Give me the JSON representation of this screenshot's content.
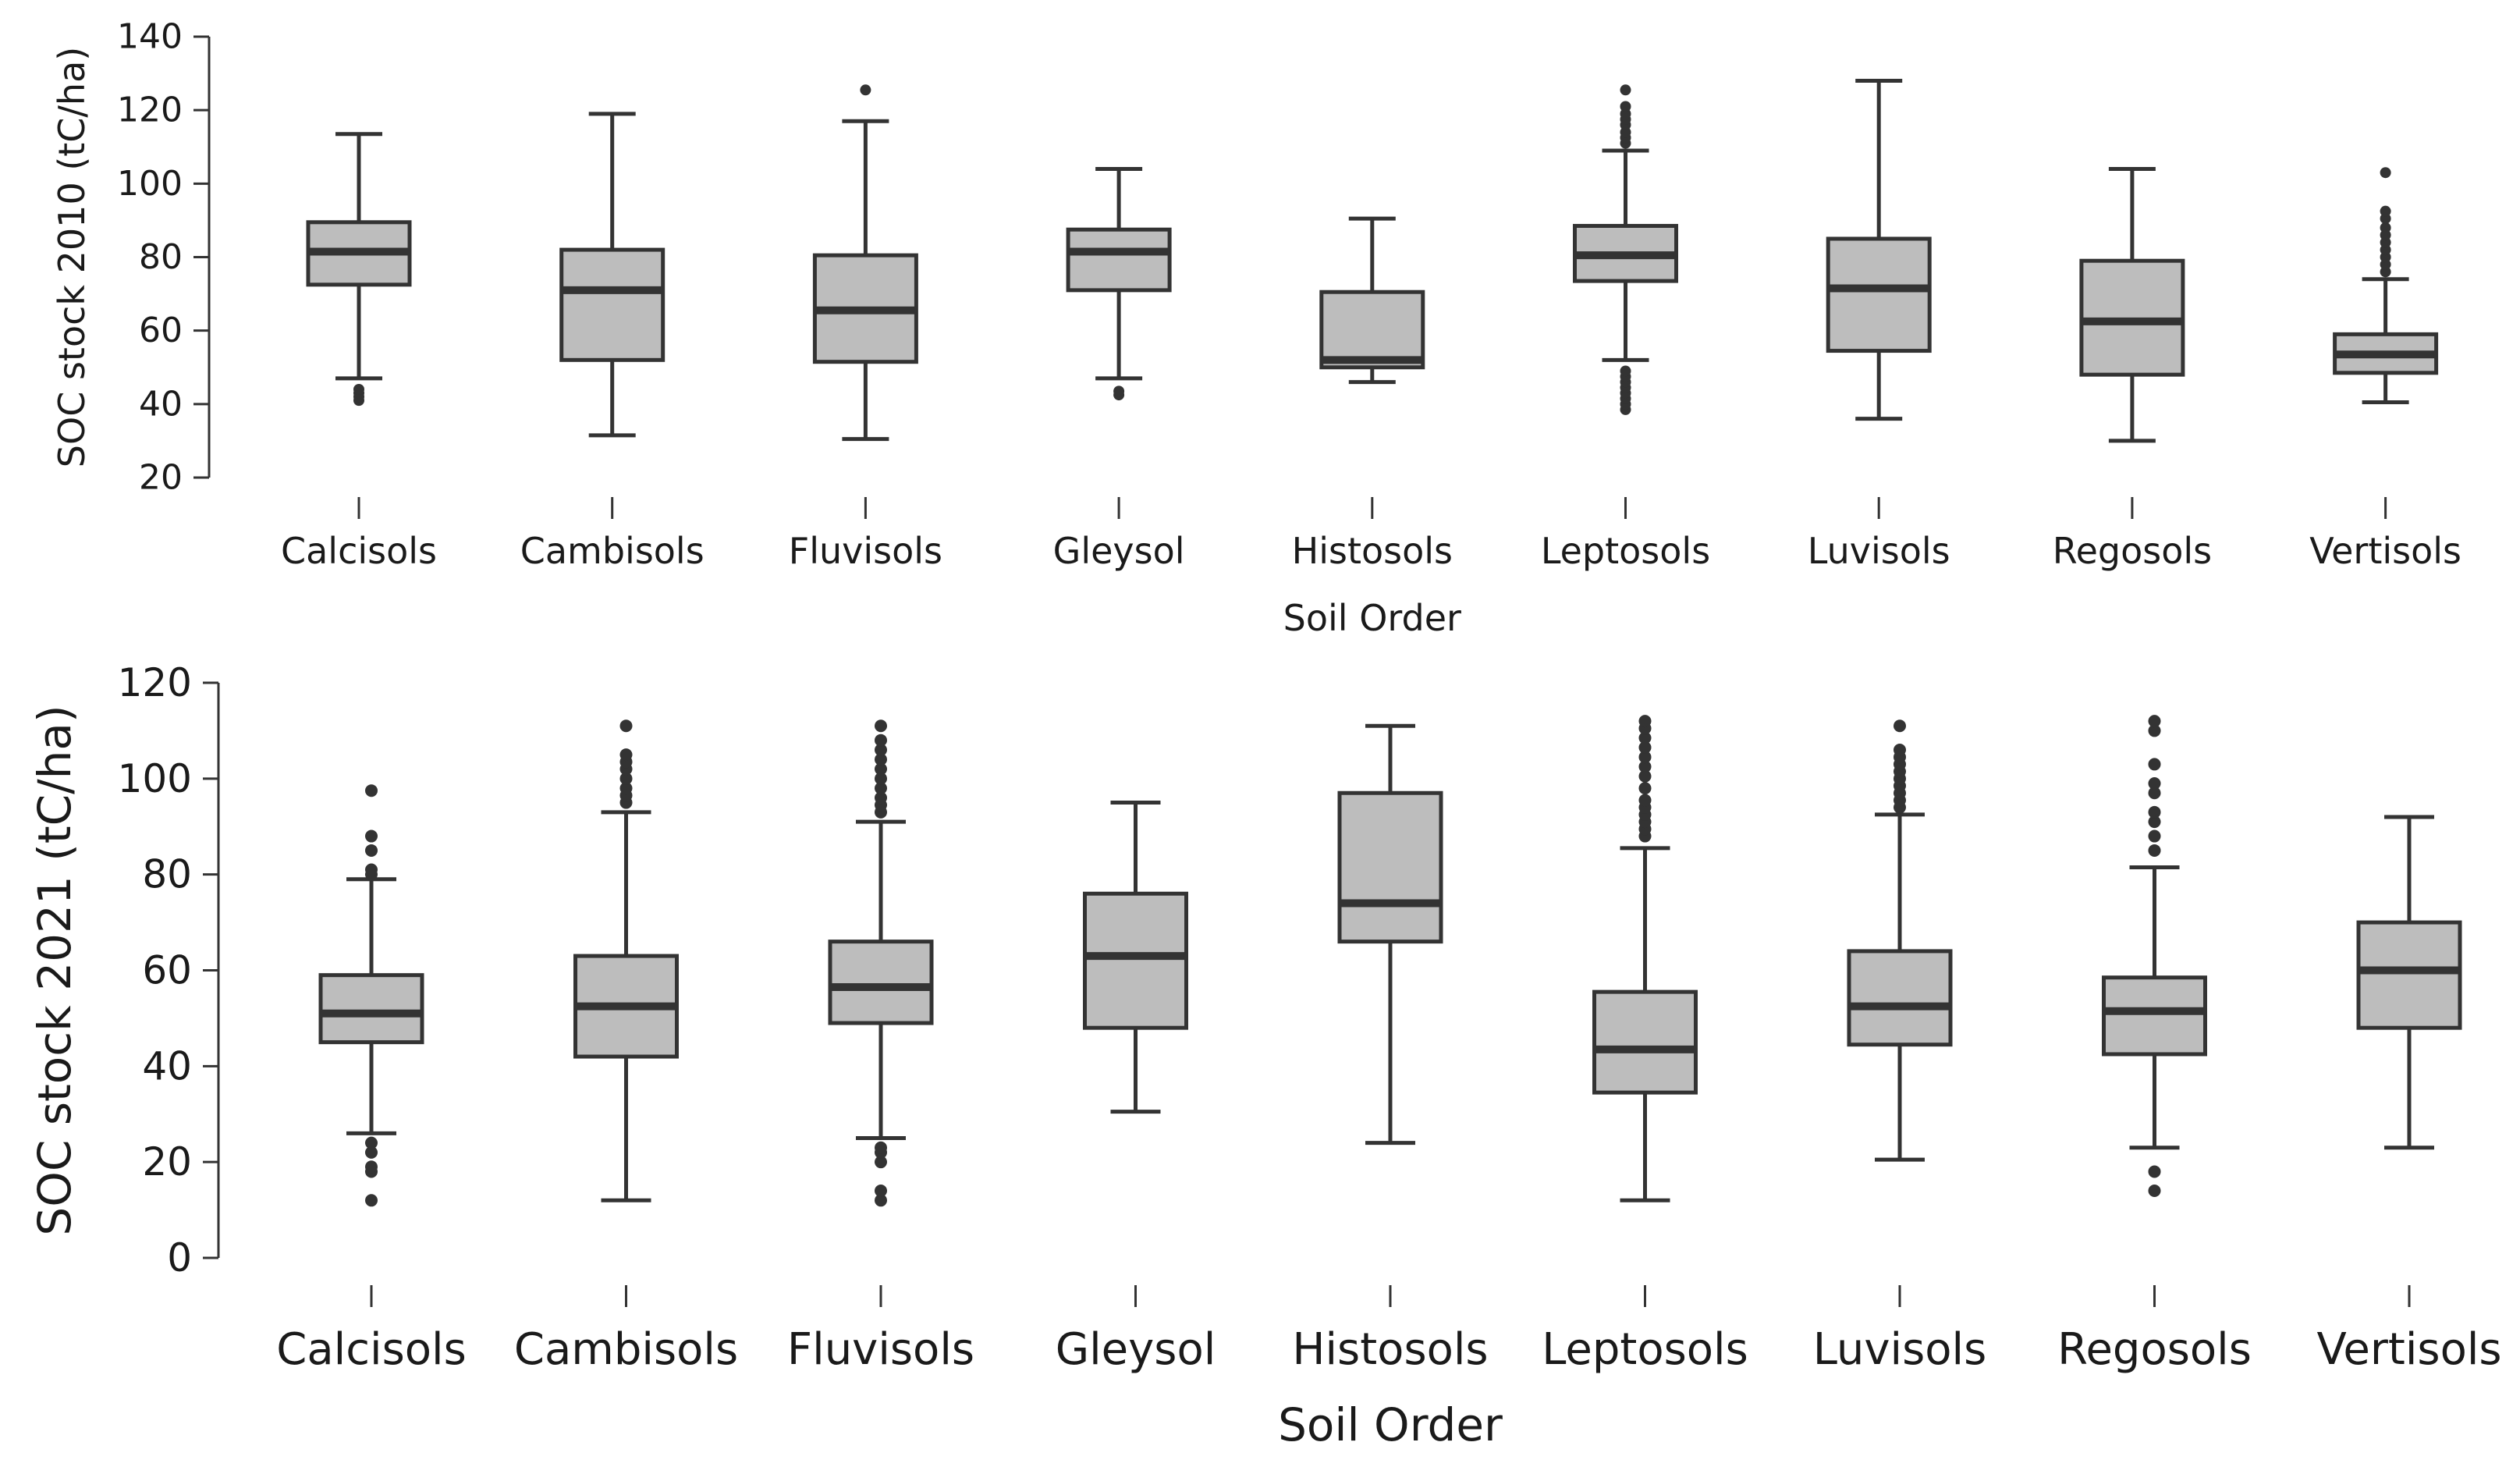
{
  "chart_data": [
    {
      "type": "box",
      "title": "",
      "xlabel": "Soil Order",
      "ylabel": "SOC stock 2010 (tC/ha)",
      "ylim": [
        20,
        140
      ],
      "yticks": [
        20,
        40,
        60,
        80,
        100,
        120,
        140
      ],
      "grid": false,
      "categories": [
        "Calcisols",
        "Cambisols",
        "Fluvisols",
        "Gleysol",
        "Histosols",
        "Leptosols",
        "Luvisols",
        "Regosols",
        "Vertisols"
      ],
      "boxes": [
        {
          "name": "Calcisols",
          "whisker_low": 47,
          "q1": 72.5,
          "median": 81.5,
          "q3": 89.5,
          "whisker_high": 113.5,
          "outliers": [
            41,
            42,
            43,
            44
          ]
        },
        {
          "name": "Cambisols",
          "whisker_low": 31.5,
          "q1": 52,
          "median": 71,
          "q3": 82,
          "whisker_high": 119,
          "outliers": []
        },
        {
          "name": "Fluvisols",
          "whisker_low": 30.5,
          "q1": 51.5,
          "median": 65.5,
          "q3": 80.5,
          "whisker_high": 117,
          "outliers": [
            125.5
          ]
        },
        {
          "name": "Gleysol",
          "whisker_low": 47,
          "q1": 71,
          "median": 81.5,
          "q3": 87.5,
          "whisker_high": 104,
          "outliers": [
            42.5,
            43.5
          ]
        },
        {
          "name": "Histosols",
          "whisker_low": 46,
          "q1": 50,
          "median": 52,
          "q3": 70.5,
          "whisker_high": 90.5,
          "outliers": []
        },
        {
          "name": "Leptosols",
          "whisker_low": 52,
          "q1": 73.5,
          "median": 80.5,
          "q3": 88.5,
          "whisker_high": 109,
          "outliers": [
            38.5,
            40,
            41.5,
            43,
            44.5,
            46,
            47.5,
            49,
            111,
            112.5,
            114,
            116,
            117.5,
            119,
            121,
            125.5
          ]
        },
        {
          "name": "Luvisols",
          "whisker_low": 36,
          "q1": 54.5,
          "median": 71.5,
          "q3": 85,
          "whisker_high": 128,
          "outliers": []
        },
        {
          "name": "Regosols",
          "whisker_low": 30,
          "q1": 48,
          "median": 62.5,
          "q3": 79,
          "whisker_high": 104,
          "outliers": []
        },
        {
          "name": "Vertisols",
          "whisker_low": 40.5,
          "q1": 48.5,
          "median": 53.5,
          "q3": 59,
          "whisker_high": 74,
          "outliers": [
            76,
            78,
            80,
            82,
            84,
            86,
            88,
            90.5,
            92.5,
            103
          ]
        }
      ]
    },
    {
      "type": "box",
      "title": "",
      "xlabel": "Soil Order",
      "ylabel": "SOC stock 2021 (tC/ha)",
      "ylim": [
        0,
        120
      ],
      "yticks": [
        0,
        20,
        40,
        60,
        80,
        100,
        120
      ],
      "grid": false,
      "categories": [
        "Calcisols",
        "Cambisols",
        "Fluvisols",
        "Gleysol",
        "Histosols",
        "Leptosols",
        "Luvisols",
        "Regosols",
        "Vertisols"
      ],
      "boxes": [
        {
          "name": "Calcisols",
          "whisker_low": 26,
          "q1": 45,
          "median": 51,
          "q3": 59,
          "whisker_high": 79,
          "outliers": [
            12,
            18,
            19,
            22,
            24,
            80,
            81,
            85,
            88,
            97.5
          ]
        },
        {
          "name": "Cambisols",
          "whisker_low": 12,
          "q1": 42,
          "median": 52.5,
          "q3": 63,
          "whisker_high": 93,
          "outliers": [
            95,
            96.5,
            98,
            100,
            102,
            103.5,
            105,
            111
          ]
        },
        {
          "name": "Fluvisols",
          "whisker_low": 25,
          "q1": 49,
          "median": 56.5,
          "q3": 66,
          "whisker_high": 91,
          "outliers": [
            12,
            14,
            20,
            22,
            23,
            93,
            94.5,
            96,
            98,
            100,
            102,
            104,
            106,
            108,
            111
          ]
        },
        {
          "name": "Gleysol",
          "whisker_low": 30.5,
          "q1": 48,
          "median": 63,
          "q3": 76,
          "whisker_high": 95,
          "outliers": []
        },
        {
          "name": "Histosols",
          "whisker_low": 24,
          "q1": 66,
          "median": 74,
          "q3": 97,
          "whisker_high": 111,
          "outliers": []
        },
        {
          "name": "Leptosols",
          "whisker_low": 12,
          "q1": 34.5,
          "median": 43.5,
          "q3": 55.5,
          "whisker_high": 85.5,
          "outliers": [
            88,
            89.5,
            91,
            92.5,
            94,
            95.5,
            98,
            100.5,
            102.5,
            104.5,
            106.5,
            108.5,
            110.5,
            112
          ]
        },
        {
          "name": "Luvisols",
          "whisker_low": 20.5,
          "q1": 44.5,
          "median": 52.5,
          "q3": 64,
          "whisker_high": 92.5,
          "outliers": [
            94,
            95.5,
            97,
            98.5,
            100,
            101.5,
            103,
            104.5,
            106,
            111
          ]
        },
        {
          "name": "Regosols",
          "whisker_low": 23,
          "q1": 42.5,
          "median": 51.5,
          "q3": 58.5,
          "whisker_high": 81.5,
          "outliers": [
            14,
            18,
            85,
            88,
            91,
            93,
            97,
            99,
            103,
            110,
            112
          ]
        },
        {
          "name": "Vertisols",
          "whisker_low": 23,
          "q1": 48,
          "median": 60,
          "q3": 70,
          "whisker_high": 92,
          "outliers": []
        }
      ]
    }
  ]
}
